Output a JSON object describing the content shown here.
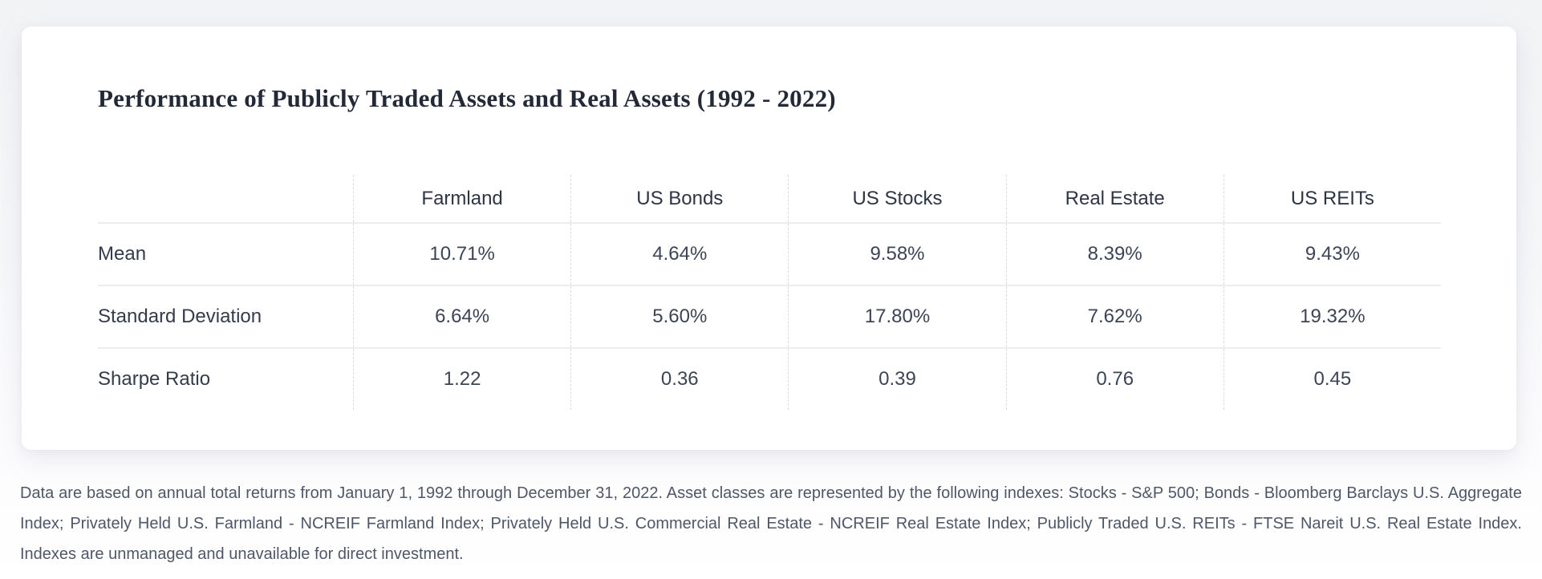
{
  "page": {
    "footnote": "Data are based on annual total returns from January 1, 1992 through December 31, 2022. Asset classes are represented by the following indexes: Stocks - S&P 500; Bonds - Bloomberg Barclays U.S. Aggregate Index; Privately Held U.S. Farmland - NCREIF Farmland Index; Privately Held U.S. Commercial Real Estate - NCREIF Real Estate Index; Publicly Traded U.S. REITs - FTSE Nareit U.S. Real Estate Index. Indexes are unmanaged and unavailable for direct investment."
  },
  "chart_data": {
    "type": "table",
    "title": "Performance of Publicly Traded Assets and Real Assets (1992 - 2022)",
    "columns": [
      "Farmland",
      "US Bonds",
      "US Stocks",
      "Real Estate",
      "US REITs"
    ],
    "row_header": "",
    "rows": [
      {
        "label": "Mean",
        "values": [
          "10.71%",
          "4.64%",
          "9.58%",
          "8.39%",
          "9.43%"
        ]
      },
      {
        "label": "Standard Deviation",
        "values": [
          "6.64%",
          "5.60%",
          "17.80%",
          "7.62%",
          "19.32%"
        ]
      },
      {
        "label": "Sharpe Ratio",
        "values": [
          "1.22",
          "0.36",
          "0.39",
          "0.76",
          "0.45"
        ]
      }
    ],
    "numeric": {
      "mean_pct": [
        10.71,
        4.64,
        9.58,
        8.39,
        9.43
      ],
      "standard_deviation_pct": [
        6.64,
        5.6,
        17.8,
        7.62,
        19.32
      ],
      "sharpe_ratio": [
        1.22,
        0.36,
        0.39,
        0.76,
        0.45
      ]
    }
  },
  "colors": {
    "card_background": "#ffffff",
    "page_background": "#f4f5f7",
    "title_text": "#232936",
    "table_text": "#3d4454",
    "row_divider": "#ecedf1",
    "column_divider_dashed": "#d8dbe2",
    "footnote_text": "#4f5767"
  }
}
